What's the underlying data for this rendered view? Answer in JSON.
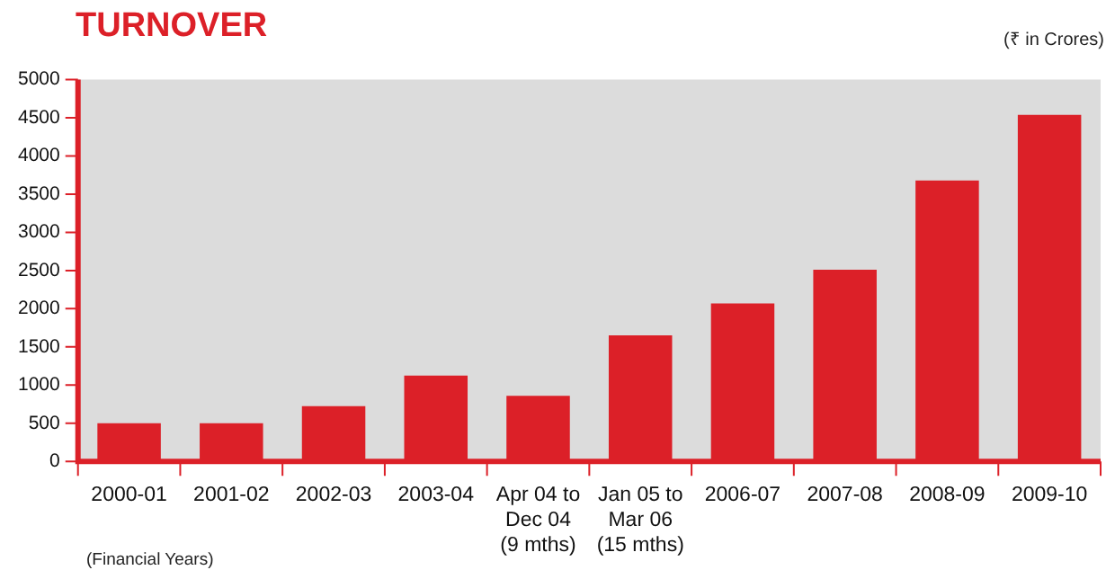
{
  "chart_data": {
    "type": "bar",
    "title": "TURNOVER",
    "annotations": [
      "(₹ in Crores)",
      "(Financial Years)"
    ],
    "categories": [
      "2000-01",
      "2001-02",
      "2002-03",
      "2003-04",
      "Apr 04 to\nDec 04\n(9 mths)",
      "Jan 05 to\nMar 06\n(15 mths)",
      "2006-07",
      "2007-08",
      "2008-09",
      "2009-10"
    ],
    "values": [
      500,
      500,
      725,
      1125,
      860,
      1650,
      2070,
      2510,
      3680,
      4540
    ],
    "color": "#dc2028",
    "ylim": [
      0,
      5000
    ],
    "yticks": [
      0,
      500,
      1000,
      1500,
      2000,
      2500,
      3000,
      3500,
      4000,
      4500,
      5000
    ],
    "grid": false
  }
}
